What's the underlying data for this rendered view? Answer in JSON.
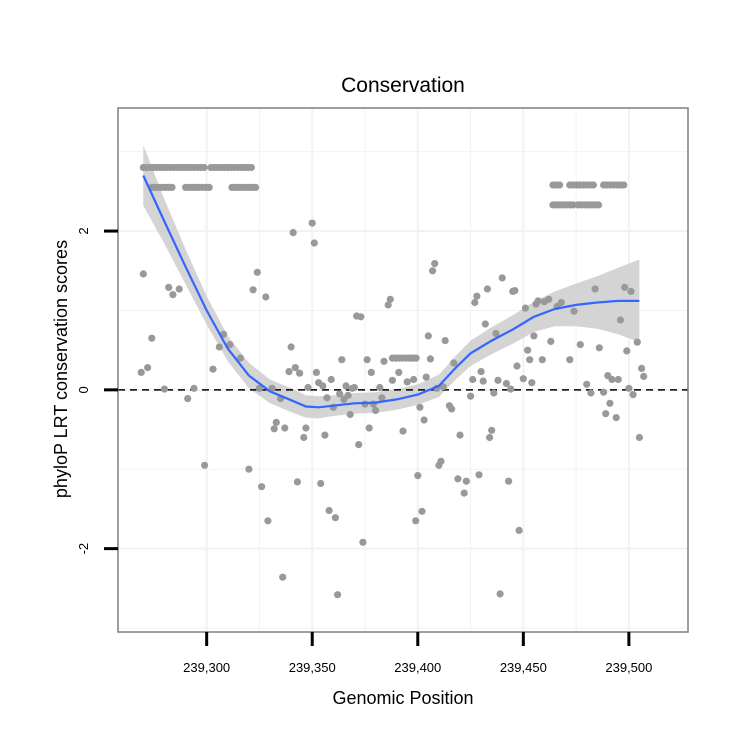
{
  "chart_data": {
    "type": "scatter",
    "title": "Conservation",
    "xlabel": "Genomic Position",
    "ylabel": "phyloP LRT conservation scores",
    "xlim": [
      239258,
      239528
    ],
    "ylim": [
      -3.05,
      3.55
    ],
    "x_ticks": [
      {
        "value": 239300,
        "label": "239,300"
      },
      {
        "value": 239350,
        "label": "239,350"
      },
      {
        "value": 239400,
        "label": "239,400"
      },
      {
        "value": 239450,
        "label": "239,450"
      },
      {
        "value": 239500,
        "label": "239,500"
      }
    ],
    "y_ticks": [
      {
        "value": -2,
        "label": "-2"
      },
      {
        "value": 0,
        "label": "0"
      },
      {
        "value": 2,
        "label": "2"
      }
    ],
    "reference_line": {
      "y": 0,
      "style": "dashed"
    },
    "colors": {
      "points": "#999999",
      "smooth": "#3366ff",
      "ribbon": "#cccccc",
      "frame": "#7f7f7f",
      "grid": "#f2f2f2"
    },
    "rows": [
      {
        "y": 2.8,
        "x_start": 239270,
        "x_end": 239300,
        "step": 1.6
      },
      {
        "y": 2.8,
        "x_start": 239302,
        "x_end": 239322,
        "step": 1.6
      },
      {
        "y": 2.55,
        "x_start": 239274,
        "x_end": 239285,
        "step": 1.6
      },
      {
        "y": 2.55,
        "x_start": 239290,
        "x_end": 239302,
        "step": 1.6
      },
      {
        "y": 2.55,
        "x_start": 239312,
        "x_end": 239324,
        "step": 1.6
      },
      {
        "y": 2.58,
        "x_start": 239464,
        "x_end": 239468,
        "step": 1.6
      },
      {
        "y": 2.58,
        "x_start": 239472,
        "x_end": 239484,
        "step": 1.6
      },
      {
        "y": 2.58,
        "x_start": 239488,
        "x_end": 239498,
        "step": 1.6
      },
      {
        "y": 2.33,
        "x_start": 239464,
        "x_end": 239474,
        "step": 1.6
      },
      {
        "y": 2.33,
        "x_start": 239476,
        "x_end": 239486,
        "step": 1.6
      },
      {
        "y": 0.4,
        "x_start": 239388,
        "x_end": 239400,
        "step": 1.6
      }
    ],
    "points": [
      [
        239269,
        0.22
      ],
      [
        239270,
        1.46
      ],
      [
        239272,
        0.28
      ],
      [
        239274,
        0.65
      ],
      [
        239280,
        0.01
      ],
      [
        239282,
        1.29
      ],
      [
        239284,
        1.2
      ],
      [
        239287,
        1.27
      ],
      [
        239291,
        -0.11
      ],
      [
        239294,
        0.02
      ],
      [
        239299,
        -0.95
      ],
      [
        239303,
        0.26
      ],
      [
        239306,
        0.54
      ],
      [
        239308,
        0.7
      ],
      [
        239311,
        0.57
      ],
      [
        239316,
        0.4
      ],
      [
        239320,
        -1.0
      ],
      [
        239322,
        1.26
      ],
      [
        239324,
        1.48
      ],
      [
        239325,
        0.02
      ],
      [
        239326,
        -1.22
      ],
      [
        239328,
        1.17
      ],
      [
        239329,
        -1.65
      ],
      [
        239331,
        0.02
      ],
      [
        239332,
        -0.49
      ],
      [
        239333,
        -0.41
      ],
      [
        239335,
        -0.11
      ],
      [
        239336,
        -2.36
      ],
      [
        239337,
        -0.48
      ],
      [
        239339,
        0.23
      ],
      [
        239340,
        0.54
      ],
      [
        239341,
        1.98
      ],
      [
        239342,
        0.28
      ],
      [
        239343,
        -1.16
      ],
      [
        239344,
        0.21
      ],
      [
        239346,
        -0.6
      ],
      [
        239347,
        -0.48
      ],
      [
        239348,
        0.03
      ],
      [
        239350,
        2.1
      ],
      [
        239351,
        1.85
      ],
      [
        239352,
        0.22
      ],
      [
        239353,
        0.09
      ],
      [
        239354,
        -1.18
      ],
      [
        239355,
        0.05
      ],
      [
        239356,
        -0.57
      ],
      [
        239357,
        -0.1
      ],
      [
        239358,
        -1.52
      ],
      [
        239359,
        0.13
      ],
      [
        239360,
        -0.22
      ],
      [
        239361,
        -1.61
      ],
      [
        239362,
        -2.58
      ],
      [
        239363,
        -0.05
      ],
      [
        239364,
        0.38
      ],
      [
        239365,
        -0.12
      ],
      [
        239366,
        0.05
      ],
      [
        239367,
        -0.07
      ],
      [
        239368,
        -0.31
      ],
      [
        239369,
        0.02
      ],
      [
        239370,
        0.03
      ],
      [
        239371,
        0.93
      ],
      [
        239372,
        -0.69
      ],
      [
        239373,
        0.92
      ],
      [
        239374,
        -1.92
      ],
      [
        239375,
        -0.18
      ],
      [
        239376,
        0.38
      ],
      [
        239377,
        -0.48
      ],
      [
        239378,
        0.22
      ],
      [
        239379,
        -0.18
      ],
      [
        239380,
        -0.26
      ],
      [
        239382,
        0.03
      ],
      [
        239383,
        -0.1
      ],
      [
        239384,
        0.36
      ],
      [
        239386,
        1.07
      ],
      [
        239387,
        1.14
      ],
      [
        239388,
        0.12
      ],
      [
        239391,
        0.22
      ],
      [
        239393,
        -0.52
      ],
      [
        239395,
        0.1
      ],
      [
        239397,
        0.4
      ],
      [
        239398,
        0.13
      ],
      [
        239399,
        -1.65
      ],
      [
        239400,
        -1.08
      ],
      [
        239401,
        -0.22
      ],
      [
        239402,
        -1.53
      ],
      [
        239403,
        -0.38
      ],
      [
        239404,
        0.16
      ],
      [
        239405,
        0.68
      ],
      [
        239406,
        0.39
      ],
      [
        239407,
        1.5
      ],
      [
        239408,
        1.59
      ],
      [
        239409,
        0.02
      ],
      [
        239410,
        -0.95
      ],
      [
        239411,
        -0.9
      ],
      [
        239412,
        0.04
      ],
      [
        239413,
        0.62
      ],
      [
        239415,
        -0.2
      ],
      [
        239416,
        -0.24
      ],
      [
        239417,
        0.34
      ],
      [
        239419,
        -1.12
      ],
      [
        239420,
        -0.57
      ],
      [
        239422,
        -1.3
      ],
      [
        239423,
        -1.15
      ],
      [
        239425,
        -0.08
      ],
      [
        239426,
        0.13
      ],
      [
        239427,
        1.1
      ],
      [
        239428,
        1.18
      ],
      [
        239429,
        -1.07
      ],
      [
        239430,
        0.23
      ],
      [
        239431,
        0.11
      ],
      [
        239432,
        0.83
      ],
      [
        239433,
        1.27
      ],
      [
        239434,
        -0.6
      ],
      [
        239435,
        -0.51
      ],
      [
        239436,
        -0.04
      ],
      [
        239437,
        0.71
      ],
      [
        239438,
        0.12
      ],
      [
        239439,
        -2.57
      ],
      [
        239440,
        1.41
      ],
      [
        239442,
        0.08
      ],
      [
        239443,
        -1.15
      ],
      [
        239444,
        0.01
      ],
      [
        239445,
        1.24
      ],
      [
        239446,
        1.25
      ],
      [
        239447,
        0.3
      ],
      [
        239448,
        -1.77
      ],
      [
        239450,
        0.14
      ],
      [
        239451,
        1.03
      ],
      [
        239452,
        0.5
      ],
      [
        239453,
        0.38
      ],
      [
        239454,
        0.09
      ],
      [
        239455,
        0.68
      ],
      [
        239456,
        1.08
      ],
      [
        239457,
        1.12
      ],
      [
        239459,
        0.38
      ],
      [
        239460,
        1.11
      ],
      [
        239462,
        1.14
      ],
      [
        239463,
        0.61
      ],
      [
        239466,
        1.05
      ],
      [
        239468,
        1.1
      ],
      [
        239472,
        0.38
      ],
      [
        239474,
        0.99
      ],
      [
        239477,
        0.57
      ],
      [
        239480,
        0.07
      ],
      [
        239482,
        -0.04
      ],
      [
        239484,
        1.27
      ],
      [
        239486,
        0.53
      ],
      [
        239488,
        -0.03
      ],
      [
        239489,
        -0.3
      ],
      [
        239490,
        0.18
      ],
      [
        239491,
        -0.17
      ],
      [
        239492,
        0.13
      ],
      [
        239494,
        -0.35
      ],
      [
        239495,
        0.13
      ],
      [
        239496,
        0.88
      ],
      [
        239498,
        1.29
      ],
      [
        239499,
        0.49
      ],
      [
        239500,
        0.02
      ],
      [
        239501,
        1.24
      ],
      [
        239502,
        -0.06
      ],
      [
        239504,
        0.6
      ],
      [
        239505,
        -0.6
      ],
      [
        239506,
        0.27
      ],
      [
        239507,
        0.17
      ]
    ],
    "smooth": [
      [
        239270,
        2.7,
        0.38
      ],
      [
        239280,
        2.12,
        0.28
      ],
      [
        239290,
        1.55,
        0.22
      ],
      [
        239300,
        1.0,
        0.18
      ],
      [
        239310,
        0.52,
        0.16
      ],
      [
        239320,
        0.18,
        0.16
      ],
      [
        239330,
        -0.02,
        0.15
      ],
      [
        239340,
        -0.13,
        0.15
      ],
      [
        239347,
        -0.21,
        0.14
      ],
      [
        239353,
        -0.22,
        0.14
      ],
      [
        239360,
        -0.2,
        0.13
      ],
      [
        239370,
        -0.17,
        0.13
      ],
      [
        239380,
        -0.16,
        0.13
      ],
      [
        239390,
        -0.12,
        0.13
      ],
      [
        239400,
        -0.06,
        0.13
      ],
      [
        239410,
        0.05,
        0.14
      ],
      [
        239418,
        0.28,
        0.15
      ],
      [
        239425,
        0.46,
        0.16
      ],
      [
        239435,
        0.62,
        0.17
      ],
      [
        239445,
        0.76,
        0.18
      ],
      [
        239455,
        0.92,
        0.19
      ],
      [
        239465,
        1.02,
        0.22
      ],
      [
        239475,
        1.07,
        0.27
      ],
      [
        239485,
        1.1,
        0.33
      ],
      [
        239495,
        1.12,
        0.42
      ],
      [
        239505,
        1.12,
        0.52
      ]
    ]
  }
}
